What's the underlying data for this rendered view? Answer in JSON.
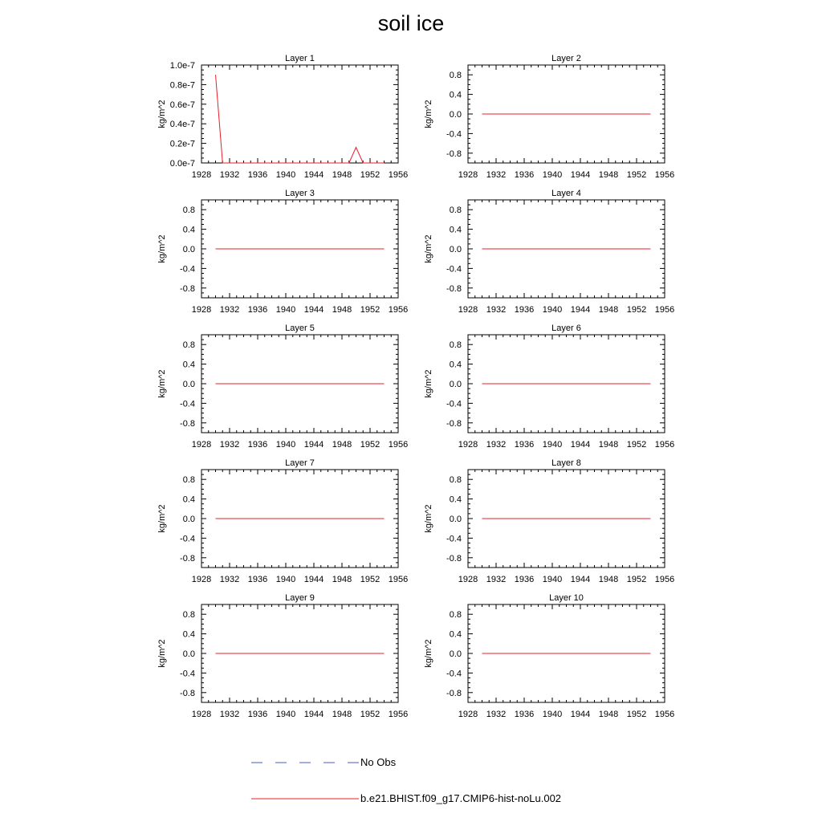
{
  "title": "soil ice",
  "legend": {
    "obs_label": "No Obs",
    "obs_color": "#4a5bc4",
    "model_label": "b.e21.BHIST.f09_g17.CMIP6-hist-noLu.002",
    "model_color": "#e8202a"
  },
  "chart_data": [
    {
      "type": "line",
      "title": "Layer 1",
      "xlabel": "",
      "ylabel": "kg/m^2",
      "xlim": [
        1928,
        1956
      ],
      "ylim": [
        0,
        1e-07
      ],
      "xticks": [
        1928,
        1932,
        1936,
        1940,
        1944,
        1948,
        1952,
        1956
      ],
      "yticks": [
        0,
        2e-08,
        4e-08,
        6e-08,
        8e-08,
        1e-07
      ],
      "yticklabels": [
        "0.0e-7",
        "0.2e-7",
        "0.4e-7",
        "0.6e-7",
        "0.8e-7",
        "1.0e-7"
      ],
      "series": [
        {
          "name": "b.e21.BHIST.f09_g17.CMIP6-hist-noLu.002",
          "x": [
            1930,
            1931,
            1932,
            1933,
            1934,
            1935,
            1936,
            1937,
            1938,
            1939,
            1940,
            1941,
            1942,
            1943,
            1944,
            1945,
            1946,
            1947,
            1948,
            1949,
            1950,
            1951,
            1952,
            1953,
            1954
          ],
          "y": [
            9e-08,
            0,
            0,
            0,
            0,
            0,
            0,
            0,
            0,
            0,
            0,
            0,
            0,
            0,
            0,
            0,
            0,
            0,
            0,
            0,
            1.6e-08,
            0,
            0,
            0,
            0
          ]
        }
      ]
    },
    {
      "type": "line",
      "title": "Layer 2",
      "xlabel": "",
      "ylabel": "kg/m^2",
      "xlim": [
        1928,
        1956
      ],
      "ylim": [
        -1,
        1
      ],
      "xticks": [
        1928,
        1932,
        1936,
        1940,
        1944,
        1948,
        1952,
        1956
      ],
      "yticks": [
        -0.8,
        -0.4,
        0.0,
        0.4,
        0.8
      ],
      "yticklabels": [
        "-0.8",
        "-0.4",
        "0.0",
        "0.4",
        "0.8"
      ],
      "series": [
        {
          "name": "b.e21.BHIST.f09_g17.CMIP6-hist-noLu.002",
          "x": [
            1930,
            1954
          ],
          "y": [
            0,
            0
          ]
        }
      ]
    },
    {
      "type": "line",
      "title": "Layer 3",
      "xlabel": "",
      "ylabel": "kg/m^2",
      "xlim": [
        1928,
        1956
      ],
      "ylim": [
        -1,
        1
      ],
      "xticks": [
        1928,
        1932,
        1936,
        1940,
        1944,
        1948,
        1952,
        1956
      ],
      "yticks": [
        -0.8,
        -0.4,
        0.0,
        0.4,
        0.8
      ],
      "yticklabels": [
        "-0.8",
        "-0.4",
        "0.0",
        "0.4",
        "0.8"
      ],
      "series": [
        {
          "name": "b.e21.BHIST.f09_g17.CMIP6-hist-noLu.002",
          "x": [
            1930,
            1954
          ],
          "y": [
            0,
            0
          ]
        }
      ]
    },
    {
      "type": "line",
      "title": "Layer 4",
      "xlabel": "",
      "ylabel": "kg/m^2",
      "xlim": [
        1928,
        1956
      ],
      "ylim": [
        -1,
        1
      ],
      "xticks": [
        1928,
        1932,
        1936,
        1940,
        1944,
        1948,
        1952,
        1956
      ],
      "yticks": [
        -0.8,
        -0.4,
        0.0,
        0.4,
        0.8
      ],
      "yticklabels": [
        "-0.8",
        "-0.4",
        "0.0",
        "0.4",
        "0.8"
      ],
      "series": [
        {
          "name": "b.e21.BHIST.f09_g17.CMIP6-hist-noLu.002",
          "x": [
            1930,
            1954
          ],
          "y": [
            0,
            0
          ]
        }
      ]
    },
    {
      "type": "line",
      "title": "Layer 5",
      "xlabel": "",
      "ylabel": "kg/m^2",
      "xlim": [
        1928,
        1956
      ],
      "ylim": [
        -1,
        1
      ],
      "xticks": [
        1928,
        1932,
        1936,
        1940,
        1944,
        1948,
        1952,
        1956
      ],
      "yticks": [
        -0.8,
        -0.4,
        0.0,
        0.4,
        0.8
      ],
      "yticklabels": [
        "-0.8",
        "-0.4",
        "0.0",
        "0.4",
        "0.8"
      ],
      "series": [
        {
          "name": "b.e21.BHIST.f09_g17.CMIP6-hist-noLu.002",
          "x": [
            1930,
            1954
          ],
          "y": [
            0,
            0
          ]
        }
      ]
    },
    {
      "type": "line",
      "title": "Layer 6",
      "xlabel": "",
      "ylabel": "kg/m^2",
      "xlim": [
        1928,
        1956
      ],
      "ylim": [
        -1,
        1
      ],
      "xticks": [
        1928,
        1932,
        1936,
        1940,
        1944,
        1948,
        1952,
        1956
      ],
      "yticks": [
        -0.8,
        -0.4,
        0.0,
        0.4,
        0.8
      ],
      "yticklabels": [
        "-0.8",
        "-0.4",
        "0.0",
        "0.4",
        "0.8"
      ],
      "series": [
        {
          "name": "b.e21.BHIST.f09_g17.CMIP6-hist-noLu.002",
          "x": [
            1930,
            1954
          ],
          "y": [
            0,
            0
          ]
        }
      ]
    },
    {
      "type": "line",
      "title": "Layer 7",
      "xlabel": "",
      "ylabel": "kg/m^2",
      "xlim": [
        1928,
        1956
      ],
      "ylim": [
        -1,
        1
      ],
      "xticks": [
        1928,
        1932,
        1936,
        1940,
        1944,
        1948,
        1952,
        1956
      ],
      "yticks": [
        -0.8,
        -0.4,
        0.0,
        0.4,
        0.8
      ],
      "yticklabels": [
        "-0.8",
        "-0.4",
        "0.0",
        "0.4",
        "0.8"
      ],
      "series": [
        {
          "name": "b.e21.BHIST.f09_g17.CMIP6-hist-noLu.002",
          "x": [
            1930,
            1954
          ],
          "y": [
            0,
            0
          ]
        }
      ]
    },
    {
      "type": "line",
      "title": "Layer 8",
      "xlabel": "",
      "ylabel": "kg/m^2",
      "xlim": [
        1928,
        1956
      ],
      "ylim": [
        -1,
        1
      ],
      "xticks": [
        1928,
        1932,
        1936,
        1940,
        1944,
        1948,
        1952,
        1956
      ],
      "yticks": [
        -0.8,
        -0.4,
        0.0,
        0.4,
        0.8
      ],
      "yticklabels": [
        "-0.8",
        "-0.4",
        "0.0",
        "0.4",
        "0.8"
      ],
      "series": [
        {
          "name": "b.e21.BHIST.f09_g17.CMIP6-hist-noLu.002",
          "x": [
            1930,
            1954
          ],
          "y": [
            0,
            0
          ]
        }
      ]
    },
    {
      "type": "line",
      "title": "Layer 9",
      "xlabel": "",
      "ylabel": "kg/m^2",
      "xlim": [
        1928,
        1956
      ],
      "ylim": [
        -1,
        1
      ],
      "xticks": [
        1928,
        1932,
        1936,
        1940,
        1944,
        1948,
        1952,
        1956
      ],
      "yticks": [
        -0.8,
        -0.4,
        0.0,
        0.4,
        0.8
      ],
      "yticklabels": [
        "-0.8",
        "-0.4",
        "0.0",
        "0.4",
        "0.8"
      ],
      "series": [
        {
          "name": "b.e21.BHIST.f09_g17.CMIP6-hist-noLu.002",
          "x": [
            1930,
            1954
          ],
          "y": [
            0,
            0
          ]
        }
      ]
    },
    {
      "type": "line",
      "title": "Layer 10",
      "xlabel": "",
      "ylabel": "kg/m^2",
      "xlim": [
        1928,
        1956
      ],
      "ylim": [
        -1,
        1
      ],
      "xticks": [
        1928,
        1932,
        1936,
        1940,
        1944,
        1948,
        1952,
        1956
      ],
      "yticks": [
        -0.8,
        -0.4,
        0.0,
        0.4,
        0.8
      ],
      "yticklabels": [
        "-0.8",
        "-0.4",
        "0.0",
        "0.4",
        "0.8"
      ],
      "series": [
        {
          "name": "b.e21.BHIST.f09_g17.CMIP6-hist-noLu.002",
          "x": [
            1930,
            1954
          ],
          "y": [
            0,
            0
          ]
        }
      ]
    }
  ]
}
